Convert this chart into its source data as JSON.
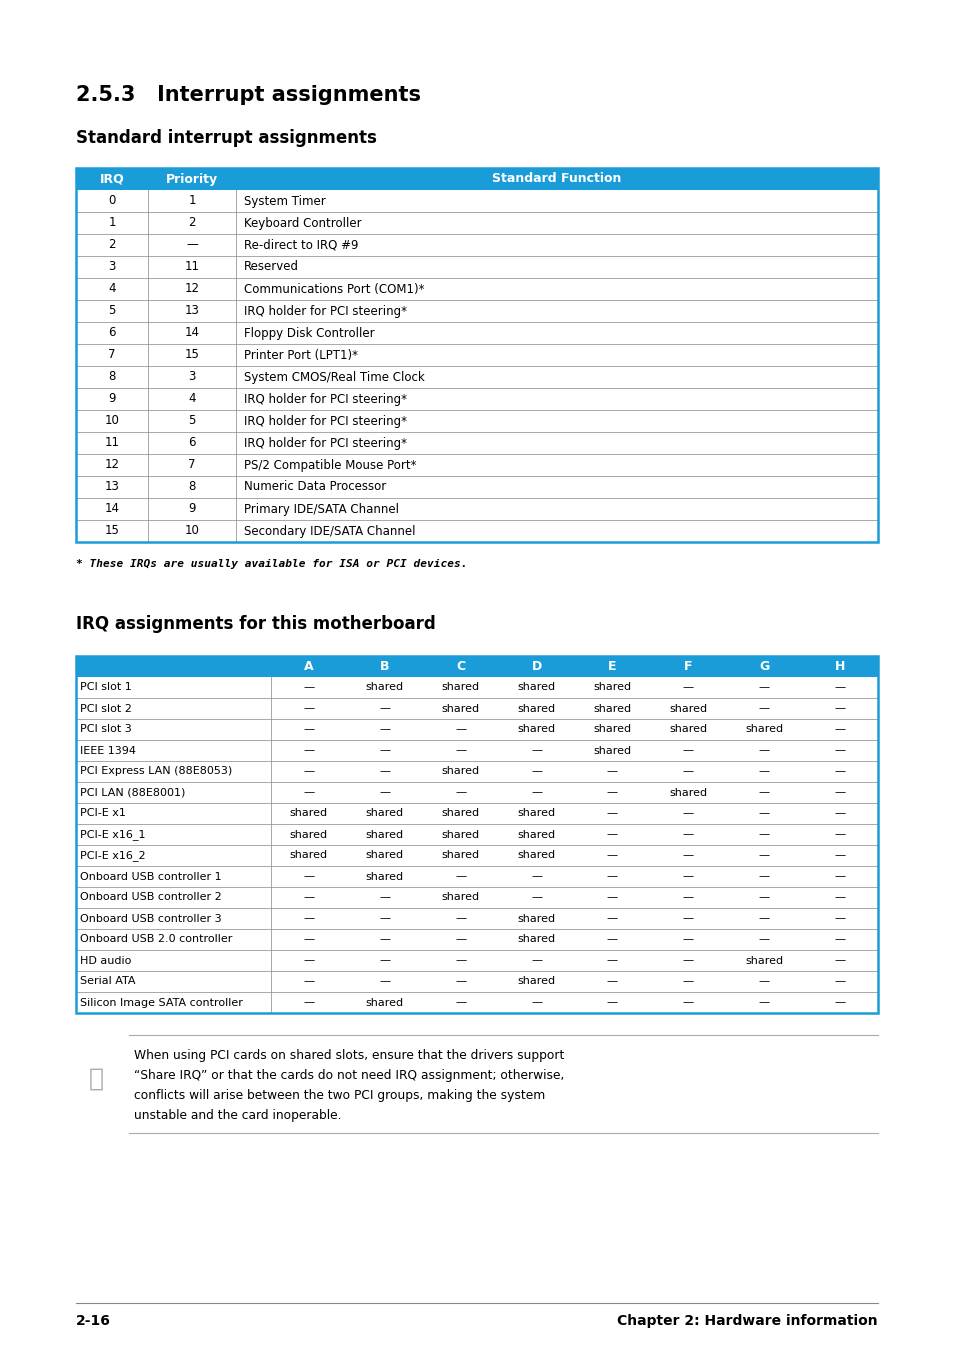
{
  "title": "2.5.3   Interrupt assignments",
  "subtitle1": "Standard interrupt assignments",
  "subtitle2": "IRQ assignments for this motherboard",
  "header_color": "#1a9cd8",
  "bg_color": "#ffffff",
  "table1_rows": [
    [
      "0",
      "1",
      "System Timer"
    ],
    [
      "1",
      "2",
      "Keyboard Controller"
    ],
    [
      "2",
      "—",
      "Re-direct to IRQ #9"
    ],
    [
      "3",
      "11",
      "Reserved"
    ],
    [
      "4",
      "12",
      "Communications Port (COM1)*"
    ],
    [
      "5",
      "13",
      "IRQ holder for PCI steering*"
    ],
    [
      "6",
      "14",
      "Floppy Disk Controller"
    ],
    [
      "7",
      "15",
      "Printer Port (LPT1)*"
    ],
    [
      "8",
      "3",
      "System CMOS/Real Time Clock"
    ],
    [
      "9",
      "4",
      "IRQ holder for PCI steering*"
    ],
    [
      "10",
      "5",
      "IRQ holder for PCI steering*"
    ],
    [
      "11",
      "6",
      "IRQ holder for PCI steering*"
    ],
    [
      "12",
      "7",
      "PS/2 Compatible Mouse Port*"
    ],
    [
      "13",
      "8",
      "Numeric Data Processor"
    ],
    [
      "14",
      "9",
      "Primary IDE/SATA Channel"
    ],
    [
      "15",
      "10",
      "Secondary IDE/SATA Channel"
    ]
  ],
  "footnote": "* These IRQs are usually available for ISA or PCI devices.",
  "table2_rows": [
    [
      "PCI slot 1",
      "—",
      "shared",
      "shared",
      "shared",
      "shared",
      "—",
      "—",
      "—"
    ],
    [
      "PCI slot 2",
      "—",
      "—",
      "shared",
      "shared",
      "shared",
      "shared",
      "—",
      "—"
    ],
    [
      "PCI slot 3",
      "—",
      "—",
      "—",
      "shared",
      "shared",
      "shared",
      "shared",
      "—"
    ],
    [
      "IEEE 1394",
      "—",
      "—",
      "—",
      "—",
      "shared",
      "—",
      "—",
      "—"
    ],
    [
      "PCI Express LAN (88E8053)",
      "—",
      "—",
      "shared",
      "—",
      "—",
      "—",
      "—",
      "—"
    ],
    [
      "PCI LAN (88E8001)",
      "—",
      "—",
      "—",
      "—",
      "—",
      "shared",
      "—",
      "—"
    ],
    [
      "PCI-E x1",
      "shared",
      "shared",
      "shared",
      "shared",
      "—",
      "—",
      "—",
      "—"
    ],
    [
      "PCI-E x16_1",
      "shared",
      "shared",
      "shared",
      "shared",
      "—",
      "—",
      "—",
      "—"
    ],
    [
      "PCI-E x16_2",
      "shared",
      "shared",
      "shared",
      "shared",
      "—",
      "—",
      "—",
      "—"
    ],
    [
      "Onboard USB controller 1",
      "—",
      "shared",
      "—",
      "—",
      "—",
      "—",
      "—",
      "—"
    ],
    [
      "Onboard USB controller 2",
      "—",
      "—",
      "shared",
      "—",
      "—",
      "—",
      "—",
      "—"
    ],
    [
      "Onboard USB controller 3",
      "—",
      "—",
      "—",
      "shared",
      "—",
      "—",
      "—",
      "—"
    ],
    [
      "Onboard USB 2.0 controller",
      "—",
      "—",
      "—",
      "shared",
      "—",
      "—",
      "—",
      "—"
    ],
    [
      "HD audio",
      "—",
      "—",
      "—",
      "—",
      "—",
      "—",
      "shared",
      "—"
    ],
    [
      "Serial ATA",
      "—",
      "—",
      "—",
      "shared",
      "—",
      "—",
      "—",
      "—"
    ],
    [
      "Silicon Image SATA controller",
      "—",
      "shared",
      "—",
      "—",
      "—",
      "—",
      "—",
      "—"
    ]
  ],
  "note_line1": "When using PCI cards on shared slots, ensure that the drivers support",
  "note_line2": "“Share IRQ” or that the cards do not need IRQ assignment; otherwise,",
  "note_line3": "conflicts will arise between the two PCI groups, making the system",
  "note_line4": "unstable and the card inoperable.",
  "footer_left": "2-16",
  "footer_right": "Chapter 2: Hardware information"
}
